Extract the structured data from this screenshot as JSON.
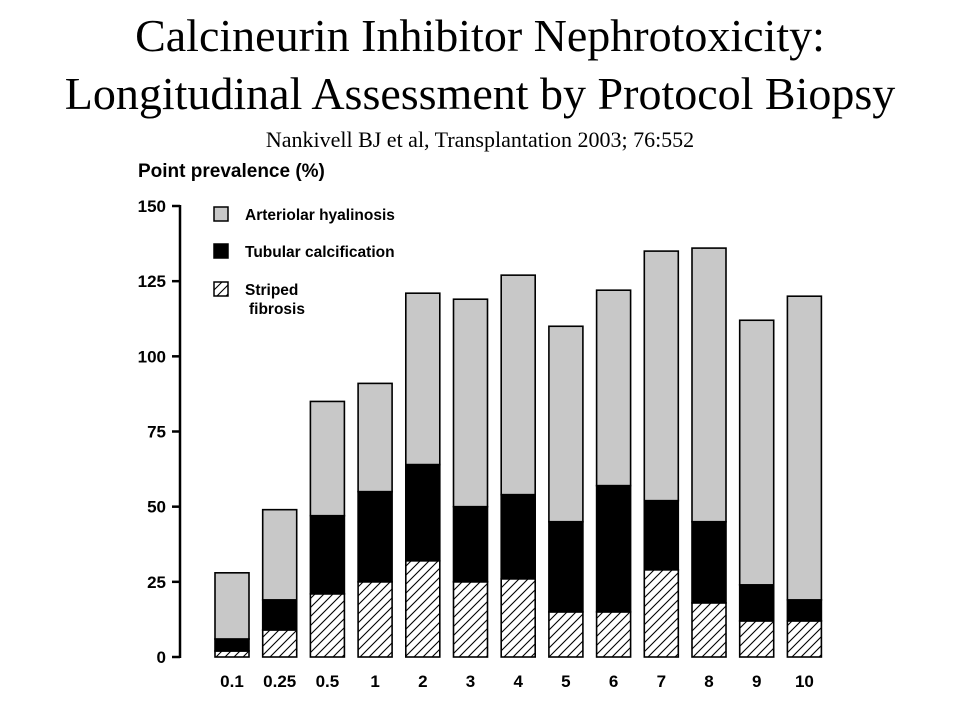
{
  "header": {
    "title_line1": "Calcineurin Inhibitor Nephrotoxicity:",
    "title_line2": "Longitudinal Assessment by Protocol Biopsy",
    "citation": "Nankivell BJ et al, Transplantation 2003; 76:552"
  },
  "chart_data": {
    "type": "bar",
    "stacked": true,
    "ylabel": "Point prevalence (%)",
    "xlabel": "",
    "ylim": [
      0,
      150
    ],
    "yticks": [
      0,
      25,
      50,
      75,
      100,
      125,
      150
    ],
    "categories": [
      "0.1",
      "0.25",
      "0.5",
      "1",
      "2",
      "3",
      "4",
      "5",
      "6",
      "7",
      "8",
      "9",
      "10"
    ],
    "series": [
      {
        "name": "Striped fibrosis",
        "fill": "hatch",
        "values": [
          2,
          9,
          21,
          25,
          32,
          25,
          26,
          15,
          15,
          29,
          18,
          12,
          12
        ]
      },
      {
        "name": "Tubular calcification",
        "fill": "#000000",
        "values": [
          4,
          10,
          26,
          30,
          32,
          25,
          28,
          30,
          42,
          23,
          27,
          12,
          7
        ]
      },
      {
        "name": "Arteriolar hyalinosis",
        "fill": "#c8c8c8",
        "values": [
          22,
          30,
          38,
          36,
          57,
          69,
          73,
          65,
          65,
          83,
          91,
          88,
          101
        ]
      }
    ],
    "legend": {
      "placement": "top-left",
      "items": [
        {
          "label": "Arteriolar hyalinosis",
          "fill": "#c8c8c8"
        },
        {
          "label": "Tubular calcification",
          "fill": "#000000"
        },
        {
          "label_line1": "Striped",
          "label_line2": "fibrosis",
          "fill": "hatch"
        }
      ]
    },
    "grid": false
  }
}
